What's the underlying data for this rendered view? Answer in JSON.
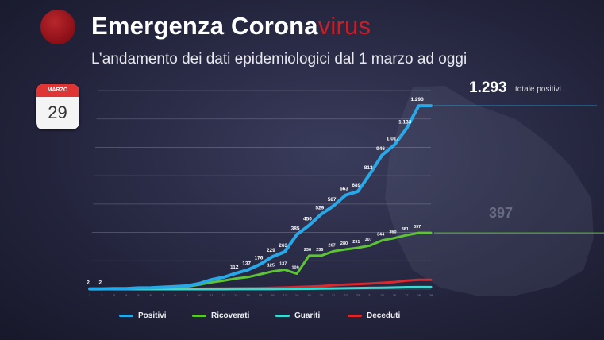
{
  "header": {
    "title_main": "Emergenza Corona",
    "title_accent": "virus",
    "subtitle": "L’andamento dei dati epidemiologici dal 1 marzo ad oggi"
  },
  "calendar": {
    "month": "MARZO",
    "day": "29"
  },
  "callout": {
    "value": "1.293",
    "label": "totale positivi",
    "secondary_value": "397"
  },
  "colors": {
    "positivi": "#29a8e8",
    "ricoverati": "#5dc436",
    "guariti": "#41d6d0",
    "deceduti": "#d8292e",
    "title_accent": "#c81e28"
  },
  "chart_data": {
    "type": "line",
    "x": [
      "1",
      "2",
      "3",
      "4",
      "5",
      "6",
      "7",
      "8",
      "9",
      "10",
      "11",
      "12",
      "13",
      "14",
      "15",
      "16",
      "17",
      "18",
      "19",
      "20",
      "21",
      "22",
      "23",
      "24",
      "25",
      "26",
      "27",
      "28",
      "29"
    ],
    "ylim": [
      0,
      1400
    ],
    "grid": true,
    "legend_position": "bottom",
    "series": [
      {
        "name": "Positivi",
        "values": [
          2,
          2,
          4,
          4,
          9,
          10,
          14,
          18,
          23,
          40,
          67,
          84,
          112,
          137,
          176,
          229,
          263,
          385,
          450,
          529,
          587,
          663,
          689,
          813,
          946,
          1017,
          1133,
          1293,
          1293
        ],
        "labels": [
          "2",
          "2",
          "",
          "",
          "",
          "",
          "",
          "",
          "",
          "",
          "",
          "",
          "112",
          "137",
          "176",
          "229",
          "263",
          "385",
          "450",
          "529",
          "587",
          "663",
          "689",
          "813",
          "946",
          "1.017",
          "1.133",
          "1.293",
          ""
        ]
      },
      {
        "name": "Ricoverati",
        "values": [
          1,
          2,
          3,
          3,
          7,
          8,
          10,
          14,
          18,
          32,
          48,
          60,
          75,
          85,
          105,
          125,
          137,
          109,
          236,
          236,
          267,
          280,
          291,
          307,
          344,
          360,
          381,
          397,
          397
        ],
        "labels": [
          "",
          "",
          "",
          "",
          "",
          "",
          "",
          "",
          "",
          "",
          "",
          "",
          "",
          "",
          "",
          "125",
          "137",
          "109",
          "236",
          "236",
          "267",
          "280",
          "291",
          "307",
          "344",
          "360",
          "381",
          "397",
          ""
        ]
      },
      {
        "name": "Guariti",
        "values": [
          0,
          0,
          0,
          0,
          0,
          0,
          0,
          0,
          0,
          0,
          0,
          0,
          1,
          1,
          1,
          1,
          2,
          2,
          3,
          4,
          5,
          6,
          8,
          9,
          10,
          12,
          14,
          15,
          15
        ],
        "labels": []
      },
      {
        "name": "Deceduti",
        "values": [
          0,
          0,
          0,
          0,
          0,
          0,
          1,
          1,
          2,
          3,
          4,
          5,
          6,
          7,
          8,
          10,
          12,
          15,
          18,
          22,
          28,
          32,
          36,
          40,
          45,
          50,
          60,
          66,
          66
        ],
        "labels": []
      }
    ]
  }
}
